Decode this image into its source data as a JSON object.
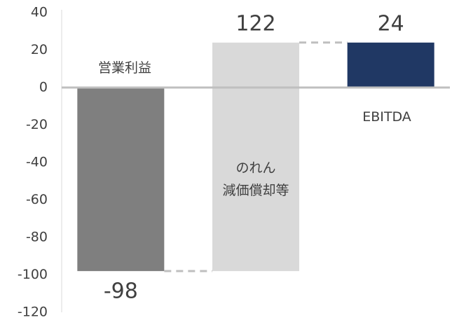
{
  "chart_data": {
    "type": "waterfall",
    "categories": [
      "営業利益",
      "のれん\n減価償却等",
      "EBITDA"
    ],
    "values": [
      -98,
      122,
      24
    ],
    "is_total": [
      false,
      false,
      true
    ],
    "colors": [
      "#7f7f7f",
      "#d9d9d9",
      "#203864"
    ],
    "ylim": [
      -120,
      40
    ],
    "yticks": [
      -120,
      -100,
      -80,
      -60,
      -40,
      -20,
      0,
      20,
      40
    ],
    "connectors": true
  }
}
